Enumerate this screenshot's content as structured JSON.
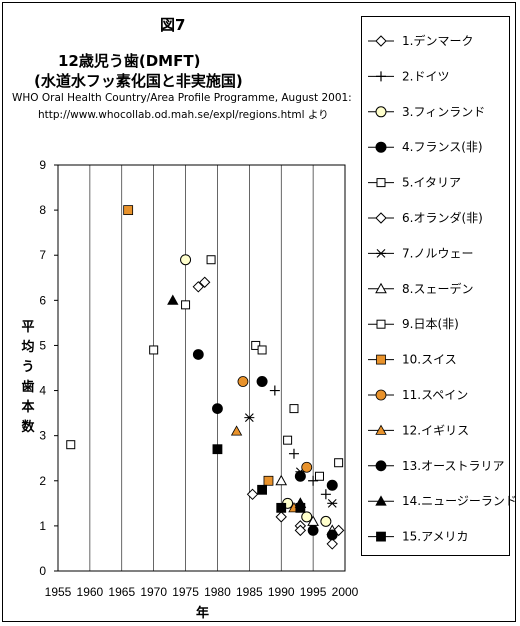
{
  "figure_label": "図7",
  "title_line1": "12歳児う歯(DMFT)",
  "title_line2": "(水道水フッ素化国と非実施国)",
  "source_line1": "WHO Oral Health Country/Area Profile Programme, August 2001:",
  "source_line2": "http://www.whocollab.od.mah.se/expl/regions.html より",
  "chart_data": {
    "type": "scatter",
    "xlabel": "年",
    "ylabel": "平均う歯本数",
    "xlim": [
      1955,
      2000
    ],
    "ylim": [
      0,
      9
    ],
    "x_ticks": [
      "1955",
      "1960",
      "1965",
      "1970",
      "1975",
      "1980",
      "1985",
      "1990",
      "1995",
      "2000"
    ],
    "y_ticks": [
      "0",
      "1",
      "2",
      "3",
      "4",
      "5",
      "6",
      "7",
      "8",
      "9"
    ],
    "grid": "vertical",
    "legend_position": "right",
    "series": [
      {
        "name": "1.デンマーク",
        "marker": "diamond-open",
        "color": "#000000",
        "points": [
          [
            1985.5,
            1.7
          ],
          [
            1990,
            1.2
          ],
          [
            1993,
            1.0
          ],
          [
            1998,
            0.6
          ]
        ]
      },
      {
        "name": "2.ドイツ",
        "marker": "plus",
        "color": "#000000",
        "points": [
          [
            1989,
            4.0
          ],
          [
            1992,
            2.6
          ],
          [
            1995,
            2.0
          ],
          [
            1997,
            1.7
          ]
        ]
      },
      {
        "name": "3.フィンランド",
        "marker": "circle-open",
        "color": "#ffffcc",
        "points": [
          [
            1975,
            6.9
          ],
          [
            1991,
            1.5
          ],
          [
            1994,
            1.2
          ],
          [
            1997,
            1.1
          ]
        ]
      },
      {
        "name": "4.フランス(非)",
        "marker": "circle-open",
        "color": "#000000",
        "points": [
          [
            1987,
            4.2
          ],
          [
            1993,
            2.1
          ],
          [
            1998,
            1.9
          ]
        ]
      },
      {
        "name": "5.イタリア",
        "marker": "square-open",
        "color": "#000000",
        "points": [
          [
            1957,
            2.8
          ],
          [
            1970,
            4.9
          ],
          [
            1975,
            5.9
          ],
          [
            1986,
            5.0
          ],
          [
            1992,
            3.6
          ],
          [
            1996,
            2.1
          ],
          [
            1999,
            2.4
          ]
        ]
      },
      {
        "name": "6.オランダ(非)",
        "marker": "diamond-open",
        "color": "#000000",
        "points": [
          [
            1977,
            6.3
          ],
          [
            1978,
            6.4
          ],
          [
            1993,
            0.9
          ],
          [
            1999,
            0.9
          ]
        ]
      },
      {
        "name": "7.ノルウェー",
        "marker": "asterisk",
        "color": "#000000",
        "points": [
          [
            1985,
            3.4
          ],
          [
            1993,
            2.2
          ],
          [
            1998,
            1.5
          ]
        ]
      },
      {
        "name": "8.スェーデン",
        "marker": "triangle-open",
        "color": "#000000",
        "points": [
          [
            1990,
            2.0
          ],
          [
            1993,
            1.5
          ],
          [
            1995,
            1.1
          ],
          [
            1998,
            0.9
          ]
        ]
      },
      {
        "name": "9.日本(非)",
        "marker": "square-open",
        "color": "#000000",
        "points": [
          [
            1979,
            6.9
          ],
          [
            1987,
            4.9
          ],
          [
            1991,
            2.9
          ]
        ]
      },
      {
        "name": "10.スイス",
        "marker": "square-filled",
        "color": "#e8922b",
        "points": [
          [
            1966,
            8.0
          ],
          [
            1988,
            2.0
          ]
        ]
      },
      {
        "name": "11.スペイン",
        "marker": "circle-filled",
        "color": "#e8922b",
        "points": [
          [
            1984,
            4.2
          ],
          [
            1994,
            2.3
          ]
        ]
      },
      {
        "name": "12.イギリス",
        "marker": "triangle-filled",
        "color": "#e8922b",
        "points": [
          [
            1983,
            3.1
          ],
          [
            1992,
            1.4
          ]
        ]
      },
      {
        "name": "13.オーストラリア",
        "marker": "circle-filled",
        "color": "#000000",
        "points": [
          [
            1977,
            4.8
          ],
          [
            1980,
            3.6
          ],
          [
            1995,
            0.9
          ],
          [
            1998,
            0.8
          ]
        ]
      },
      {
        "name": "14.ニュージーランド",
        "marker": "triangle-filled",
        "color": "#000000",
        "points": [
          [
            1973,
            6.0
          ],
          [
            1993,
            1.5
          ]
        ]
      },
      {
        "name": "15.アメリカ",
        "marker": "square-filled",
        "color": "#000000",
        "points": [
          [
            1980,
            2.7
          ],
          [
            1987,
            1.8
          ],
          [
            1990,
            1.4
          ],
          [
            1993,
            1.4
          ]
        ]
      }
    ]
  }
}
